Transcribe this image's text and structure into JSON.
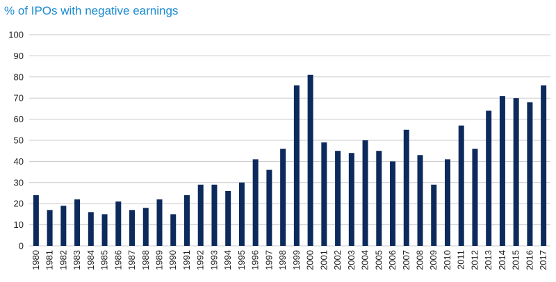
{
  "chart_data": {
    "type": "bar",
    "title": "% of IPOs with negative earnings",
    "xlabel": "",
    "ylabel": "",
    "ylim": [
      0,
      100
    ],
    "yticks": [
      0,
      10,
      20,
      30,
      40,
      50,
      60,
      70,
      80,
      90,
      100
    ],
    "grid": true,
    "categories": [
      "1980",
      "1981",
      "1982",
      "1983",
      "1984",
      "1985",
      "1986",
      "1987",
      "1988",
      "1989",
      "1990",
      "1991",
      "1992",
      "1993",
      "1994",
      "1995",
      "1996",
      "1997",
      "1998",
      "1999",
      "2000",
      "2001",
      "2002",
      "2003",
      "2004",
      "2005",
      "2006",
      "2007",
      "2008",
      "2009",
      "2010",
      "2011",
      "2012",
      "2013",
      "2014",
      "2015",
      "2016",
      "2017"
    ],
    "values": [
      24,
      17,
      19,
      22,
      16,
      15,
      21,
      17,
      18,
      22,
      15,
      24,
      29,
      29,
      26,
      30,
      41,
      36,
      46,
      76,
      81,
      49,
      45,
      44,
      50,
      45,
      40,
      55,
      43,
      29,
      41,
      57,
      46,
      64,
      71,
      70,
      68,
      76
    ],
    "bar_color": "#0d2a5c"
  }
}
